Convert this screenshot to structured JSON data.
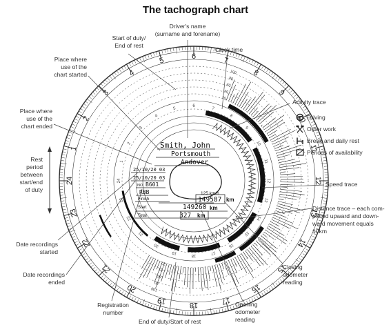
{
  "title": "The tachograph chart",
  "labels": {
    "drivers_name": "Driver's name\n(surname and forename)",
    "start_of_duty": "Start of duty/\nEnd of rest",
    "clock_time": "Clock time",
    "place_started": "Place where\nuse of the\nchart started",
    "activity_trace": "Activity trace",
    "place_ended": "Place where\nuse of the\nchart ended",
    "rest_period": "Rest\nperiod\nbetween\nstart/end\nof duty",
    "speed_trace": "Speed trace",
    "distance_trace": "Distance trace – each com-\npleted upward and down-\nward movement equals\n10km",
    "date_started": "Date recordings\nstarted",
    "date_ended": "Date recordings\nended",
    "closing_odometer": "Closing\nodometer\nreading",
    "registration": "Registration\nnumber",
    "opening_odometer": "Opening\nodometer\nreading",
    "end_of_duty": "End of duty/Start of rest"
  },
  "legend": [
    {
      "icon": "steering-wheel-icon",
      "label": "Driving"
    },
    {
      "icon": "crossed-hammers-icon",
      "label": "Other work"
    },
    {
      "icon": "bed-icon",
      "label": "Break and daily rest"
    },
    {
      "icon": "hatched-box-icon",
      "label": "Periods of availability"
    }
  ],
  "chart_card": {
    "name": "Smith, John",
    "place_start": "Portsmouth",
    "place_end": "Andover",
    "date_start": "25/10/20 03",
    "date_end": "25/10/20 03",
    "no_label": "NO",
    "registration_prefix": "B601",
    "registration_suffix": "RBB",
    "finish_label": "Finish",
    "finish_value": "149587",
    "start_label": "Start",
    "start_value": "149260",
    "total_label": "Total",
    "total_value": "327",
    "km_unit": "km",
    "speed_unit": "125 km/h"
  },
  "dial": {
    "hours": [
      "1",
      "2",
      "3",
      "4",
      "5",
      "6",
      "7",
      "8",
      "9",
      "10",
      "11",
      "12",
      "13",
      "14",
      "15",
      "16",
      "17",
      "18",
      "19",
      "20",
      "21",
      "22",
      "23",
      "24"
    ],
    "speed_marks": [
      "100",
      "80",
      "60",
      "40",
      "20"
    ]
  }
}
